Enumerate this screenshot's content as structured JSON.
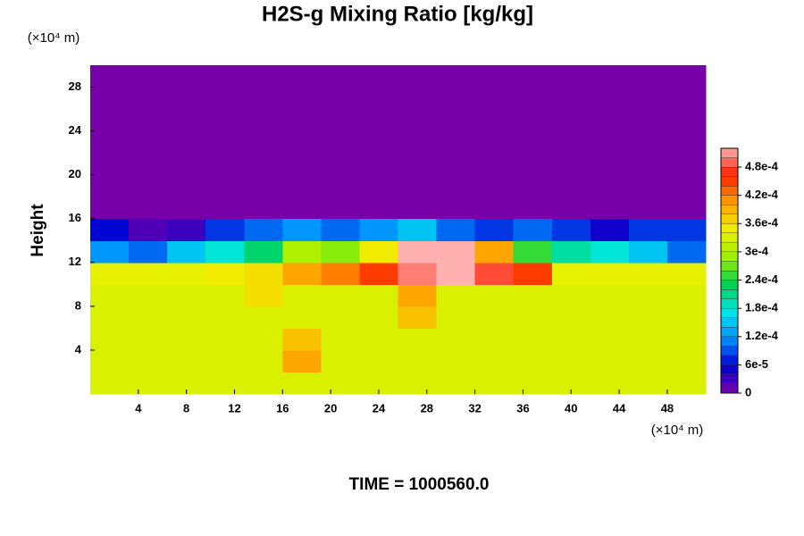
{
  "chart_data": {
    "type": "heatmap",
    "title": "H2S-g Mixing Ratio [kg/kg]",
    "y_label": "Height",
    "x_unit": "(×10⁴ m)",
    "y_unit": "(×10⁴ m)",
    "footer": "TIME = 1000560.0",
    "x": [
      0,
      3.2,
      6.4,
      9.6,
      12.8,
      16,
      19.2,
      22.4,
      25.6,
      28.8,
      32,
      35.2,
      38.4,
      41.6,
      44.8,
      48,
      51.2
    ],
    "y": [
      0,
      2,
      4,
      6,
      8,
      10,
      12,
      14,
      16,
      18,
      20,
      22,
      24,
      26,
      28,
      30
    ],
    "z": [
      [
        0.00033,
        0.00033,
        0.00033,
        0.00033,
        0.00033,
        0.00033,
        0.00033,
        0.00033,
        0.00033,
        0.00033,
        0.00033,
        0.00033,
        0.00033,
        0.00033,
        0.00033,
        0.00033
      ],
      [
        0.00033,
        0.00033,
        0.00033,
        0.00033,
        0.00033,
        0.0004,
        0.00033,
        0.00033,
        0.00033,
        0.00033,
        0.00033,
        0.00033,
        0.00033,
        0.00033,
        0.00033,
        0.00033
      ],
      [
        0.00033,
        0.00033,
        0.00033,
        0.00033,
        0.00033,
        0.00038,
        0.00033,
        0.00033,
        0.00033,
        0.00033,
        0.00033,
        0.00033,
        0.00033,
        0.00033,
        0.00033,
        0.00033
      ],
      [
        0.00033,
        0.00033,
        0.00033,
        0.00033,
        0.00033,
        0.00033,
        0.00033,
        0.00033,
        0.00038,
        0.00033,
        0.00033,
        0.00033,
        0.00033,
        0.00033,
        0.00033,
        0.00033
      ],
      [
        0.00033,
        0.00033,
        0.00033,
        0.00033,
        0.00036,
        0.00033,
        0.00033,
        0.00033,
        0.0004,
        0.00033,
        0.00033,
        0.00033,
        0.00033,
        0.00033,
        0.00033,
        0.00033
      ],
      [
        0.00034,
        0.00034,
        0.00034,
        0.00035,
        0.00036,
        0.0004,
        0.00042,
        0.00045,
        0.0005,
        0.00052,
        0.00048,
        0.00045,
        0.00034,
        0.00034,
        0.00034,
        0.00034
      ],
      [
        0.00012,
        0.0001,
        0.00015,
        0.00018,
        0.00022,
        0.0003,
        0.00028,
        0.00035,
        0.00052,
        0.00052,
        0.0004,
        0.00025,
        0.0002,
        0.00018,
        0.00015,
        0.0001
      ],
      [
        6e-05,
        2e-05,
        3e-05,
        8e-05,
        0.0001,
        0.00012,
        0.0001,
        0.00012,
        0.00015,
        0.0001,
        8e-05,
        0.0001,
        8e-05,
        5e-05,
        8e-05,
        8e-05
      ],
      [
        0,
        0,
        0,
        0,
        0,
        0,
        0,
        0,
        0,
        0,
        0,
        0,
        0,
        0,
        0,
        0
      ],
      [
        0,
        0,
        0,
        0,
        0,
        0,
        0,
        0,
        0,
        0,
        0,
        0,
        0,
        0,
        0,
        0
      ],
      [
        0,
        0,
        0,
        0,
        0,
        0,
        0,
        0,
        0,
        0,
        0,
        0,
        0,
        0,
        0,
        0
      ],
      [
        0,
        0,
        0,
        0,
        0,
        0,
        0,
        0,
        0,
        0,
        0,
        0,
        0,
        0,
        0,
        0
      ],
      [
        0,
        0,
        0,
        0,
        0,
        0,
        0,
        0,
        0,
        0,
        0,
        0,
        0,
        0,
        0,
        0
      ],
      [
        0,
        0,
        0,
        0,
        0,
        0,
        0,
        0,
        0,
        0,
        0,
        0,
        0,
        0,
        0,
        0
      ],
      [
        0,
        0,
        0,
        0,
        0,
        0,
        0,
        0,
        0,
        0,
        0,
        0,
        0,
        0,
        0,
        0
      ]
    ],
    "xlim": [
      0,
      51.2
    ],
    "ylim": [
      0,
      30
    ],
    "xticks": [
      4,
      8,
      12,
      16,
      20,
      24,
      28,
      32,
      36,
      40,
      44,
      48
    ],
    "yticks": [
      4,
      8,
      12,
      16,
      20,
      24,
      28
    ],
    "clim": [
      0,
      0.00052
    ],
    "cticks": [
      0,
      {
        "value": 6e-05,
        "label": "6e-5"
      },
      {
        "value": 0.00012,
        "label": "1.2e-4"
      },
      {
        "value": 0.00018,
        "label": "1.8e-4"
      },
      {
        "value": 0.00024,
        "label": "2.4e-4"
      },
      {
        "value": 0.0003,
        "label": "3e-4"
      },
      {
        "value": 0.00036,
        "label": "3.6e-4"
      },
      {
        "value": 0.00042,
        "label": "4.2e-4"
      },
      {
        "value": 0.00048,
        "label": "4.8e-4"
      }
    ],
    "colormap": [
      "#7800a8",
      "#0000d0",
      "#0090ff",
      "#00e8e8",
      "#00d050",
      "#a0f000",
      "#f0f000",
      "#ffa000",
      "#ff2000",
      "#ffb0b0"
    ]
  }
}
